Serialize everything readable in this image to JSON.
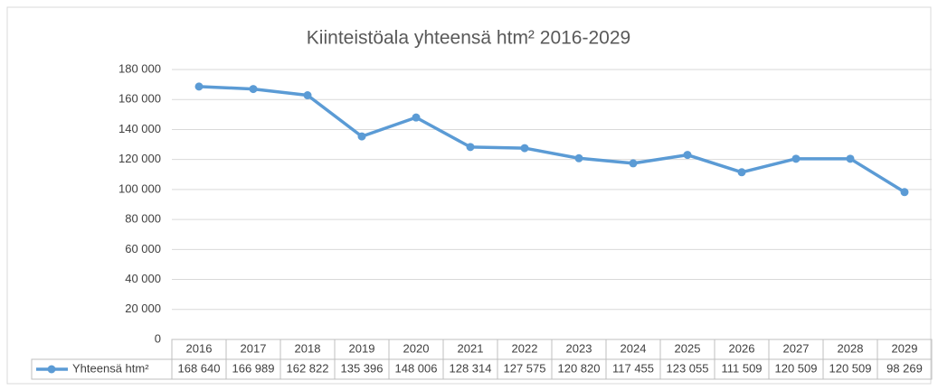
{
  "chart_data": {
    "type": "line",
    "title": "Kiinteistöala yhteensä htm² 2016-2029",
    "categories": [
      "2016",
      "2017",
      "2018",
      "2019",
      "2020",
      "2021",
      "2022",
      "2023",
      "2024",
      "2025",
      "2026",
      "2027",
      "2028",
      "2029"
    ],
    "series": [
      {
        "name": "Yhteensä htm²",
        "color": "#5b9bd5",
        "values": [
          168640,
          166989,
          162822,
          135396,
          148006,
          128314,
          127575,
          120820,
          117455,
          123055,
          111509,
          120509,
          120509,
          98269
        ],
        "value_labels": [
          "168 640",
          "166 989",
          "162 822",
          "135 396",
          "148 006",
          "128 314",
          "127 575",
          "120 820",
          "117 455",
          "123 055",
          "111 509",
          "120 509",
          "120 509",
          "98 269"
        ]
      }
    ],
    "ylim": [
      0,
      180000
    ],
    "yticks": [
      0,
      {
        "value": 20000,
        "label": "20 000"
      },
      {
        "value": 40000,
        "label": "40 000"
      },
      {
        "value": 60000,
        "label": "60 000"
      },
      {
        "value": 80000,
        "label": "80 000"
      },
      {
        "value": 100000,
        "label": "100 000"
      },
      {
        "value": 120000,
        "label": "120 000"
      },
      {
        "value": 140000,
        "label": "140 000"
      },
      {
        "value": 160000,
        "label": "160 000"
      },
      {
        "value": 180000,
        "label": "180 000"
      }
    ],
    "grid": true,
    "data_table": true
  }
}
